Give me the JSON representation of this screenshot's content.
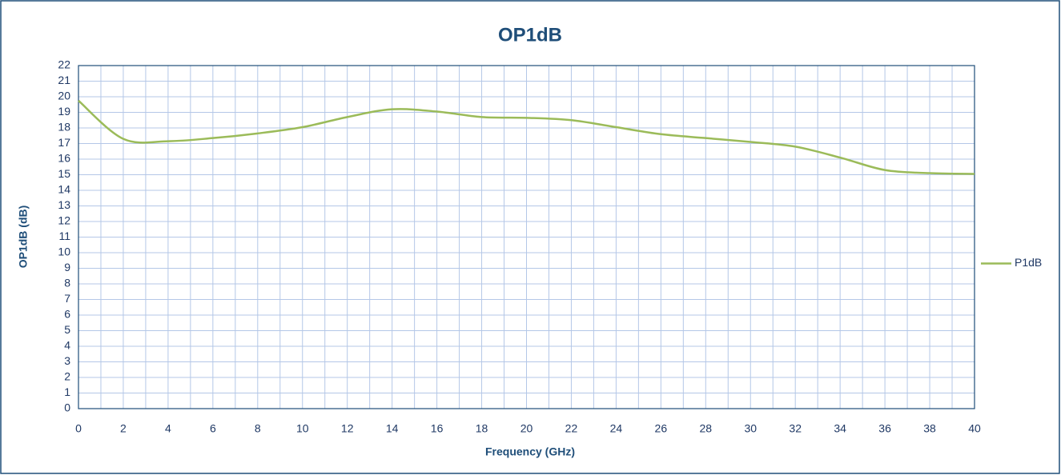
{
  "chart_data": {
    "type": "line",
    "title": "OP1dB",
    "x_label": "Frequency (GHz)",
    "y_label": "OP1dB (dB)",
    "x": [
      0,
      2,
      4,
      6,
      8,
      10,
      12,
      14,
      16,
      18,
      20,
      22,
      24,
      26,
      28,
      30,
      32,
      34,
      36,
      38,
      40
    ],
    "series": [
      {
        "name": "P1dB",
        "color": "#9bbb59",
        "values": [
          19.75,
          17.3,
          17.15,
          17.35,
          17.65,
          18.05,
          18.7,
          19.2,
          19.05,
          18.7,
          18.65,
          18.5,
          18.05,
          17.6,
          17.35,
          17.1,
          16.8,
          16.1,
          15.3,
          15.1,
          15.05
        ]
      }
    ],
    "xlim": [
      0,
      40
    ],
    "xticks": [
      0,
      2,
      4,
      6,
      8,
      10,
      12,
      14,
      16,
      18,
      20,
      22,
      24,
      26,
      28,
      30,
      32,
      34,
      36,
      38,
      40
    ],
    "ylim": [
      0,
      22
    ],
    "yticks": [
      0,
      1,
      2,
      3,
      4,
      5,
      6,
      7,
      8,
      9,
      10,
      11,
      12,
      13,
      14,
      15,
      16,
      17,
      18,
      19,
      20,
      21,
      22
    ],
    "grid": true,
    "legend": "right"
  }
}
